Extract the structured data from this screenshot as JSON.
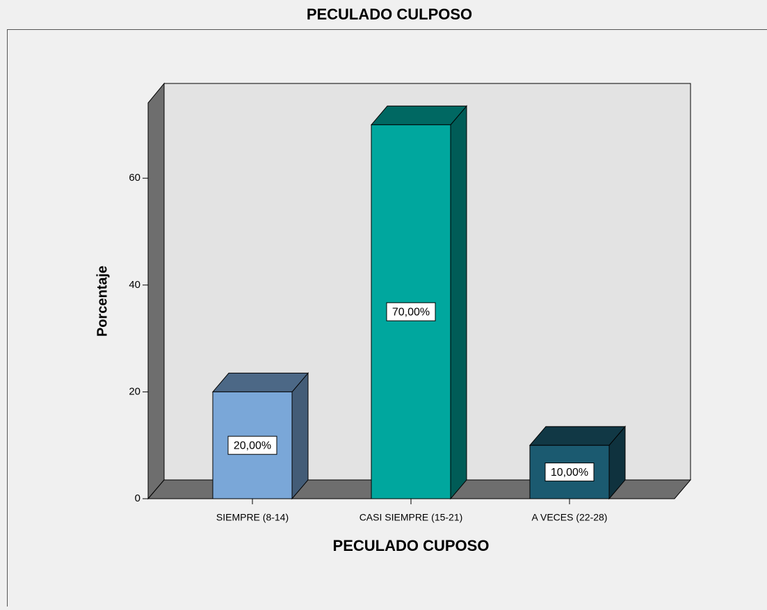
{
  "chart_data": {
    "type": "bar3d",
    "title": "PECULADO CULPOSO",
    "x_label": "PECULADO CUPOSO",
    "y_label": "Porcentaje",
    "categories": [
      "SIEMPRE (8-14)",
      "CASI SIEMPRE (15-21)",
      "A VECES (22-28)"
    ],
    "values": [
      20,
      70,
      10
    ],
    "value_labels": [
      "20,00%",
      "70,00%",
      "10,00%"
    ],
    "colors": [
      "#7aa7d8",
      "#00a79e",
      "#1b5a70"
    ],
    "ylim": [
      0,
      75
    ],
    "yticks": [
      0,
      20,
      40,
      60
    ]
  }
}
